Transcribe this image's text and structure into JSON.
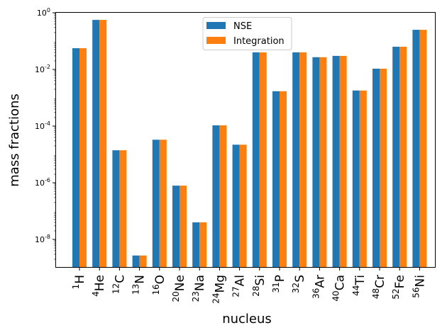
{
  "chart_data": {
    "type": "bar",
    "xlabel": "nucleus",
    "ylabel": "mass fractions",
    "yscale": "log",
    "ylim": [
      1e-09,
      1
    ],
    "yticks": [
      {
        "exp": "-8"
      },
      {
        "exp": "-6"
      },
      {
        "exp": "-4"
      },
      {
        "exp": "-2"
      },
      {
        "exp": "0"
      }
    ],
    "ytick_base": "10",
    "categories": [
      {
        "mass": "1",
        "symbol": "H"
      },
      {
        "mass": "4",
        "symbol": "He"
      },
      {
        "mass": "12",
        "symbol": "C"
      },
      {
        "mass": "13",
        "symbol": "N"
      },
      {
        "mass": "16",
        "symbol": "O"
      },
      {
        "mass": "20",
        "symbol": "Ne"
      },
      {
        "mass": "23",
        "symbol": "Na"
      },
      {
        "mass": "24",
        "symbol": "Mg"
      },
      {
        "mass": "27",
        "symbol": "Al"
      },
      {
        "mass": "28",
        "symbol": "Si"
      },
      {
        "mass": "31",
        "symbol": "P"
      },
      {
        "mass": "32",
        "symbol": "S"
      },
      {
        "mass": "36",
        "symbol": "Ar"
      },
      {
        "mass": "40",
        "symbol": "Ca"
      },
      {
        "mass": "44",
        "symbol": "Ti"
      },
      {
        "mass": "48",
        "symbol": "Cr"
      },
      {
        "mass": "52",
        "symbol": "Fe"
      },
      {
        "mass": "56",
        "symbol": "Ni"
      }
    ],
    "series": [
      {
        "name": "NSE",
        "color": "#1f77b4",
        "values": [
          0.056,
          0.56,
          1.4e-05,
          2.7e-09,
          3.3e-05,
          7.9e-07,
          4e-08,
          0.000106,
          2.2e-05,
          0.04,
          0.0017,
          0.04,
          0.027,
          0.03,
          0.0018,
          0.0106,
          0.063,
          0.25
        ]
      },
      {
        "name": "Integration",
        "color": "#ff7f0e",
        "values": [
          0.056,
          0.56,
          1.4e-05,
          2.7e-09,
          3.3e-05,
          7.9e-07,
          4e-08,
          0.000106,
          2.2e-05,
          0.04,
          0.0017,
          0.04,
          0.027,
          0.03,
          0.0018,
          0.0106,
          0.063,
          0.25
        ]
      }
    ],
    "legend": {
      "placement": "top-center"
    }
  }
}
